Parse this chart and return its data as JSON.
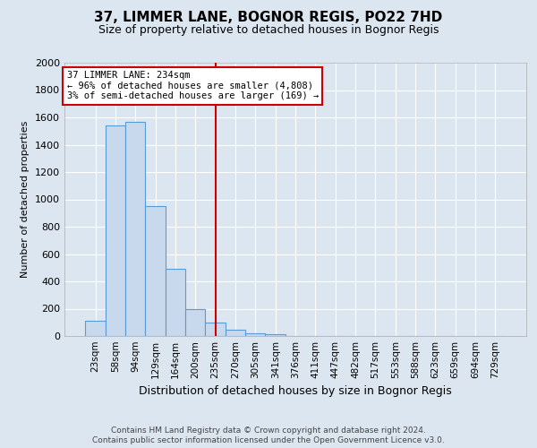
{
  "title": "37, LIMMER LANE, BOGNOR REGIS, PO22 7HD",
  "subtitle": "Size of property relative to detached houses in Bognor Regis",
  "xlabel": "Distribution of detached houses by size in Bognor Regis",
  "ylabel": "Number of detached properties",
  "footnote1": "Contains HM Land Registry data © Crown copyright and database right 2024.",
  "footnote2": "Contains public sector information licensed under the Open Government Licence v3.0.",
  "categories": [
    "23sqm",
    "58sqm",
    "94sqm",
    "129sqm",
    "164sqm",
    "200sqm",
    "235sqm",
    "270sqm",
    "305sqm",
    "341sqm",
    "376sqm",
    "411sqm",
    "447sqm",
    "482sqm",
    "517sqm",
    "553sqm",
    "588sqm",
    "623sqm",
    "659sqm",
    "694sqm",
    "729sqm"
  ],
  "values": [
    110,
    1540,
    1570,
    950,
    490,
    195,
    100,
    45,
    22,
    12,
    0,
    0,
    0,
    0,
    0,
    0,
    0,
    0,
    0,
    0,
    0
  ],
  "bar_color_fill": "#c9d9ed",
  "bar_color_edge": "#5b9bd5",
  "vline_x": 6,
  "vline_color": "#cc0000",
  "annotation_title": "37 LIMMER LANE: 234sqm",
  "annotation_line1": "← 96% of detached houses are smaller (4,808)",
  "annotation_line2": "3% of semi-detached houses are larger (169) →",
  "annotation_box_color": "#cc0000",
  "ylim": [
    0,
    2000
  ],
  "yticks": [
    0,
    200,
    400,
    600,
    800,
    1000,
    1200,
    1400,
    1600,
    1800,
    2000
  ],
  "bg_color": "#dce6f0",
  "plot_bg_color": "#dce6f0",
  "grid_color": "#ffffff"
}
